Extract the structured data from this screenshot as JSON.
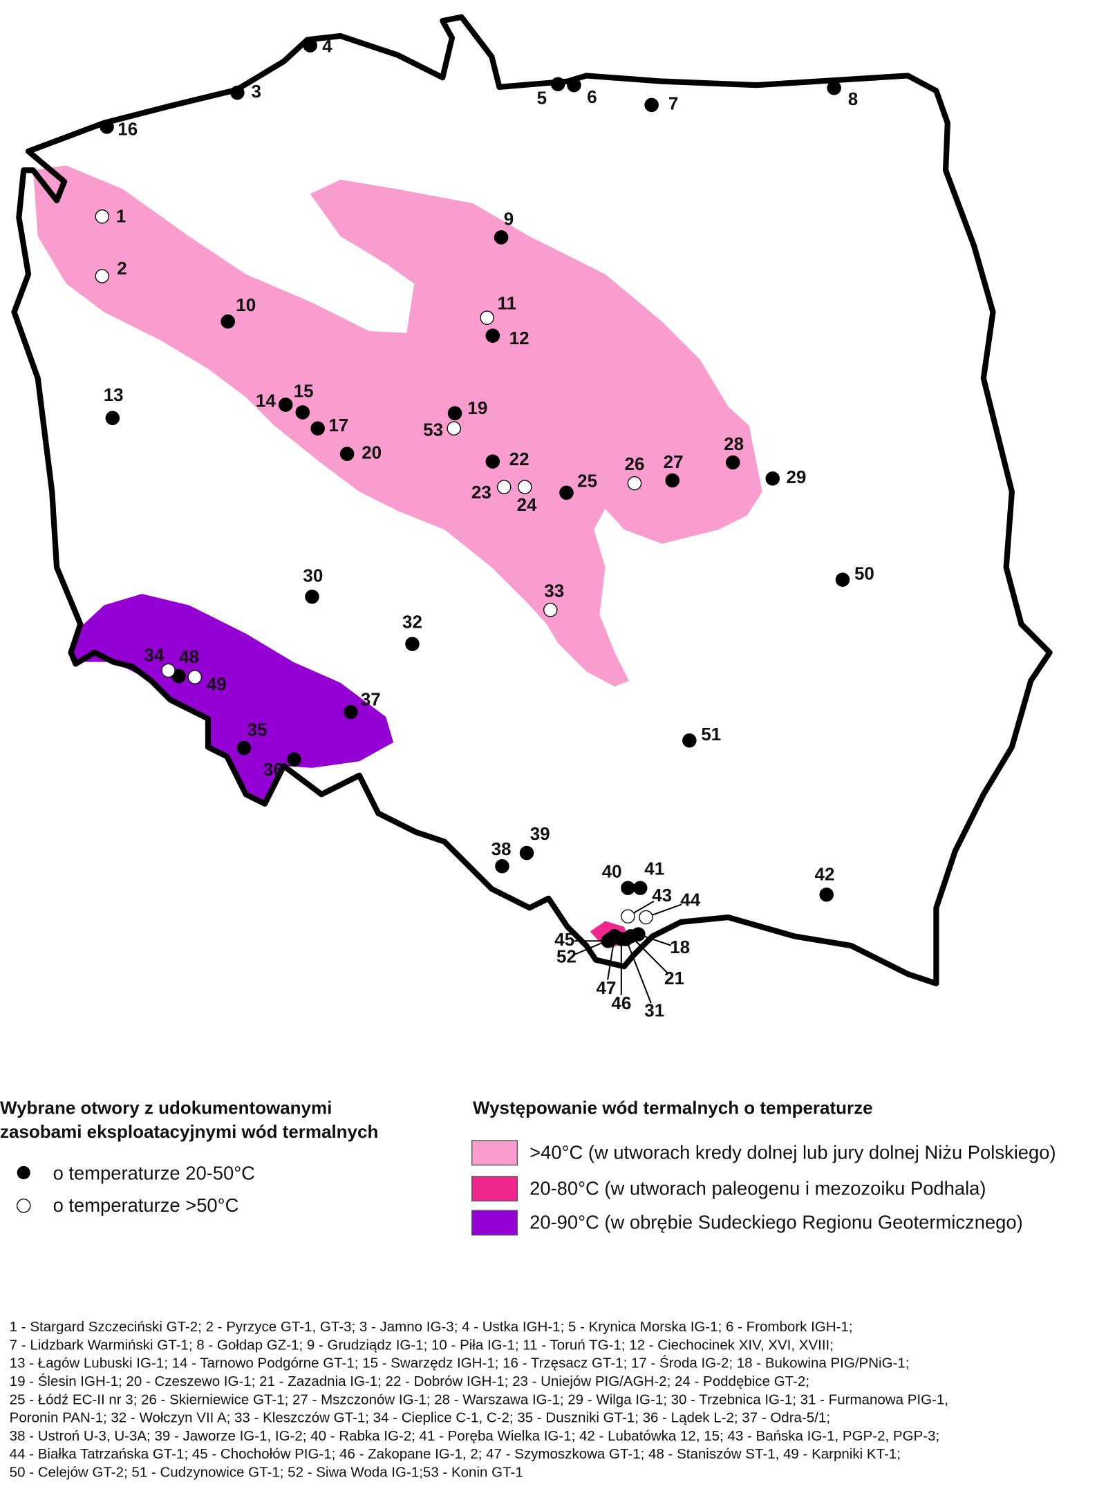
{
  "map": {
    "wells_warm": [
      "3",
      "4",
      "5",
      "6",
      "7",
      "8",
      "9",
      "10",
      "12",
      "13",
      "14",
      "15",
      "16",
      "17",
      "18",
      "19",
      "20",
      "21",
      "22",
      "25",
      "27",
      "28",
      "29",
      "30",
      "31",
      "32",
      "35",
      "36",
      "37",
      "38",
      "39",
      "40",
      "41",
      "42",
      "45",
      "46",
      "47",
      "48",
      "50",
      "51",
      "52"
    ],
    "wells_hot": [
      "1",
      "2",
      "11",
      "23",
      "24",
      "26",
      "33",
      "34",
      "43",
      "44",
      "49",
      "53"
    ]
  },
  "legend": {
    "wells_title": [
      "Wybrane otwory z udokumentowanymi",
      "zasobami eksploatacyjnymi wód termalnych"
    ],
    "warm": "o temperaturze 20-50°C",
    "hot": "o temperaturze >50°C",
    "zones_title": "Występowanie wód termalnych o temperaturze",
    "zones": [
      {
        "label": ">40°C (w utworach kredy dolnej lub jury dolnej Niżu Polskiego)",
        "color": "#f99dcf"
      },
      {
        "label": "20-80°C (w utworach paleogenu i mezozoiku Podhala)",
        "color": "#f0288e"
      },
      {
        "label": "20-90°C (w obrębie Sudeckiego Regionu Geotermicznego)",
        "color": "#9400d3"
      }
    ]
  },
  "footnote": [
    "1 - Stargard Szczeciński GT-2; 2 - Pyrzyce GT-1, GT-3; 3 - Jamno IG-3; 4 - Ustka IGH-1; 5 - Krynica Morska IG-1; 6 - Frombork IGH-1;",
    "7 - Lidzbark Warmiński GT-1; 8 - Gołdap GZ-1; 9 - Grudziądz IG-1; 10 - Piła IG-1; 11 - Toruń TG-1; 12 - Ciechocinek XIV, XVI, XVIII;",
    "13 - Łagów Lubuski IG-1; 14 - Tarnowo Podgórne GT-1; 15 - Swarzędz IGH-1; 16 - Trzęsacz GT-1; 17 - Środa IG-2; 18 - Bukowina PIG/PNiG-1;",
    "19 - Ślesin IGH-1; 20 - Czeszewo IG-1; 21 - Zazadnia IG-1; 22 - Dobrów IGH-1; 23 - Uniejów PIG/AGH-2; 24 - Poddębice GT-2;",
    "25 - Łódź EC-II nr 3; 26 - Skierniewice GT-1; 27 - Mszczonów IG-1; 28 - Warszawa IG-1; 29 - Wilga IG-1; 30 - Trzebnica IG-1; 31 - Furmanowa PIG-1,",
    "Poronin PAN-1; 32 - Wołczyn VII A; 33 - Kleszczów GT-1; 34 - Cieplice C-1, C-2; 35 - Duszniki GT-1; 36 - Lądek L-2; 37 - Odra-5/1;",
    "38 - Ustroń U-3, U-3A; 39 - Jaworze IG-1, IG-2; 40 - Rabka IG-2; 41 - Poręba Wielka IG-1; 42 - Lubatówka 12, 15; 43 - Bańska IG-1, PGP-2, PGP-3;",
    "44 - Białka Tatrzańska GT-1; 45 - Chochołów PIG-1; 46 - Zakopane IG-1, 2; 47 - Szymoszkowa GT-1; 48 - Staniszów ST-1, 49 - Karpniki KT-1;",
    "50 - Celejów GT-2; 51 - Cudzynowice GT-1; 52 - Siwa Woda IG-1;53 - Konin GT-1"
  ]
}
